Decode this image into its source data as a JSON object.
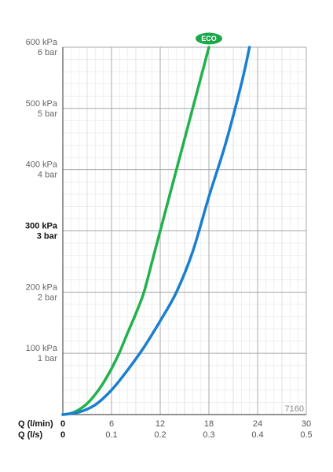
{
  "chart_data": {
    "type": "line",
    "x_unit_label": "Q (l/min)",
    "x_alt_unit_label": "Q (l/s)",
    "x_ticks": [
      0,
      6,
      12,
      18,
      24,
      30
    ],
    "x_tick_labels": [
      "0",
      "6",
      "12",
      "18",
      "24",
      "30"
    ],
    "x_alt_tick_labels": [
      "0",
      "0.1",
      "0.2",
      "0.3",
      "0.4",
      "0.5"
    ],
    "xlim": [
      0,
      30
    ],
    "ylim": [
      0,
      600
    ],
    "y_ticks": [
      {
        "value": 600,
        "kpa": "600 kPa",
        "bar": "6 bar",
        "bold": false
      },
      {
        "value": 500,
        "kpa": "500 kPa",
        "bar": "5 bar",
        "bold": false
      },
      {
        "value": 400,
        "kpa": "400 kPa",
        "bar": "4 bar",
        "bold": false
      },
      {
        "value": 300,
        "kpa": "300 kPa",
        "bar": "3 bar",
        "bold": true
      },
      {
        "value": 200,
        "kpa": "200 kPa",
        "bar": "2 bar",
        "bold": false
      },
      {
        "value": 100,
        "kpa": "100 kPa",
        "bar": "1 bar",
        "bold": false
      }
    ],
    "grid": true,
    "model_code": "7160",
    "series": [
      {
        "name": "ECO",
        "color": "#22b24c",
        "points": [
          [
            0,
            0
          ],
          [
            1,
            2
          ],
          [
            2,
            8
          ],
          [
            3,
            18
          ],
          [
            4,
            33
          ],
          [
            5,
            52
          ],
          [
            6,
            75
          ],
          [
            7,
            102
          ],
          [
            8,
            134
          ],
          [
            9,
            165
          ],
          [
            10,
            200
          ],
          [
            11,
            250
          ],
          [
            12,
            300
          ],
          [
            13,
            350
          ],
          [
            14,
            400
          ],
          [
            15,
            450
          ],
          [
            16,
            500
          ],
          [
            17,
            550
          ],
          [
            18,
            600
          ]
        ]
      },
      {
        "name": "",
        "color": "#1a7fd0",
        "points": [
          [
            0,
            0
          ],
          [
            2,
            4
          ],
          [
            4,
            16
          ],
          [
            6,
            40
          ],
          [
            8,
            73
          ],
          [
            10,
            110
          ],
          [
            12,
            153
          ],
          [
            14,
            200
          ],
          [
            16,
            266
          ],
          [
            18,
            356
          ],
          [
            20,
            440
          ],
          [
            22,
            540
          ],
          [
            23,
            600
          ]
        ]
      }
    ]
  },
  "badge": {
    "text": "ECO",
    "color": "#1aa84a"
  }
}
